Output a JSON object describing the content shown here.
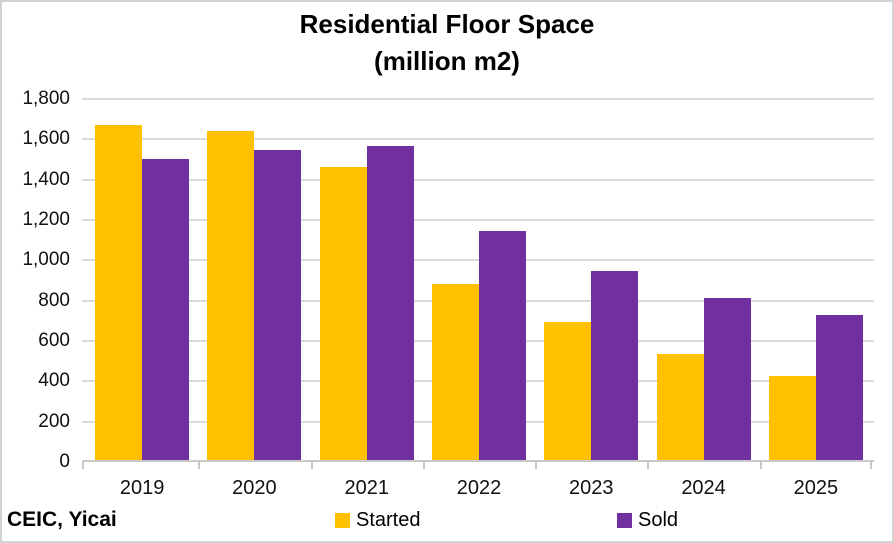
{
  "chart_data": {
    "type": "bar",
    "title": "Residential Floor Space",
    "subtitle": "(million m2)",
    "categories": [
      "2019",
      "2020",
      "2021",
      "2022",
      "2023",
      "2024",
      "2025"
    ],
    "series": [
      {
        "name": "Started",
        "color": "#FFC000",
        "values": [
          1672,
          1643,
          1464,
          881,
          693,
          537,
          425
        ]
      },
      {
        "name": "Sold",
        "color": "#7030A0",
        "values": [
          1501,
          1549,
          1565,
          1146,
          948,
          813,
          730
        ]
      }
    ],
    "xlabel": "",
    "ylabel": "",
    "ylim": [
      0,
      1800
    ],
    "ytick_step": 200,
    "ytick_labels": [
      "0",
      "200",
      "400",
      "600",
      "800",
      "1,000",
      "1,200",
      "1,400",
      "1,600",
      "1,800"
    ],
    "grid": true,
    "legend_position": "bottom"
  },
  "footer": {
    "source": "CEIC, Yicai"
  },
  "colors": {
    "started": "#FFC000",
    "sold": "#7030A0",
    "gridline": "#D9D9D9",
    "axis": "#C9C9C9",
    "frame_border": "#D2D2D2",
    "text": "#000000"
  }
}
